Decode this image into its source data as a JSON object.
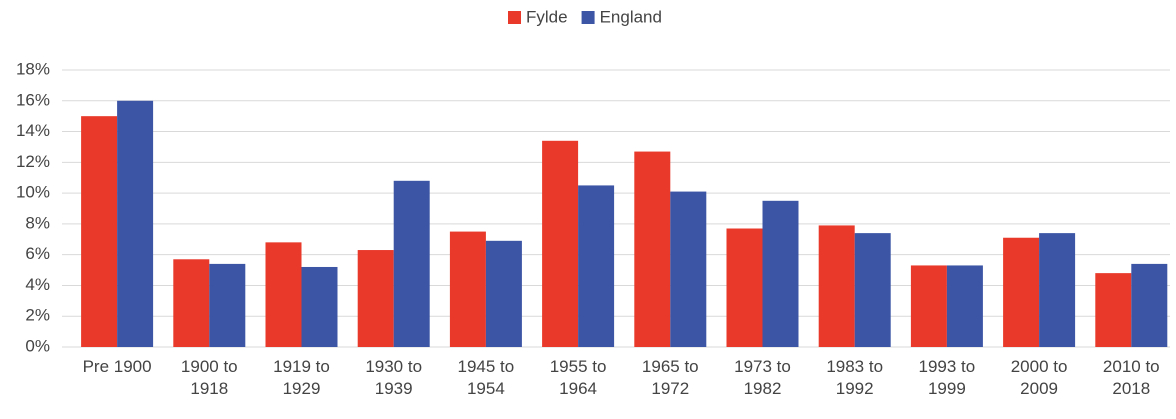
{
  "chart_data": {
    "type": "bar",
    "categories": [
      "Pre 1900",
      "1900 to 1918",
      "1919 to 1929",
      "1930 to 1939",
      "1945 to 1954",
      "1955 to 1964",
      "1965 to 1972",
      "1973 to 1982",
      "1983 to 1992",
      "1993 to 1999",
      "2000 to 2009",
      "2010 to 2018"
    ],
    "series": [
      {
        "name": "Fylde",
        "color": "#e8392a",
        "values": [
          15.0,
          5.7,
          6.8,
          6.3,
          7.5,
          13.4,
          12.7,
          7.7,
          7.9,
          5.3,
          7.1,
          4.8
        ]
      },
      {
        "name": "England",
        "color": "#3c55a5",
        "values": [
          16.0,
          5.4,
          5.2,
          10.8,
          6.9,
          10.5,
          10.1,
          9.5,
          7.4,
          5.3,
          7.4,
          5.4
        ]
      }
    ],
    "ylim": [
      0,
      18
    ],
    "yticks": [
      {
        "value": 0,
        "label": "0%"
      },
      {
        "value": 2,
        "label": "2%"
      },
      {
        "value": 4,
        "label": "4%"
      },
      {
        "value": 6,
        "label": "6%"
      },
      {
        "value": 8,
        "label": "8%"
      },
      {
        "value": 10,
        "label": "10%"
      },
      {
        "value": 12,
        "label": "12%"
      },
      {
        "value": 14,
        "label": "14%"
      },
      {
        "value": 16,
        "label": "16%"
      },
      {
        "value": 18,
        "label": "18%"
      }
    ],
    "grid": true,
    "legend": "top"
  }
}
